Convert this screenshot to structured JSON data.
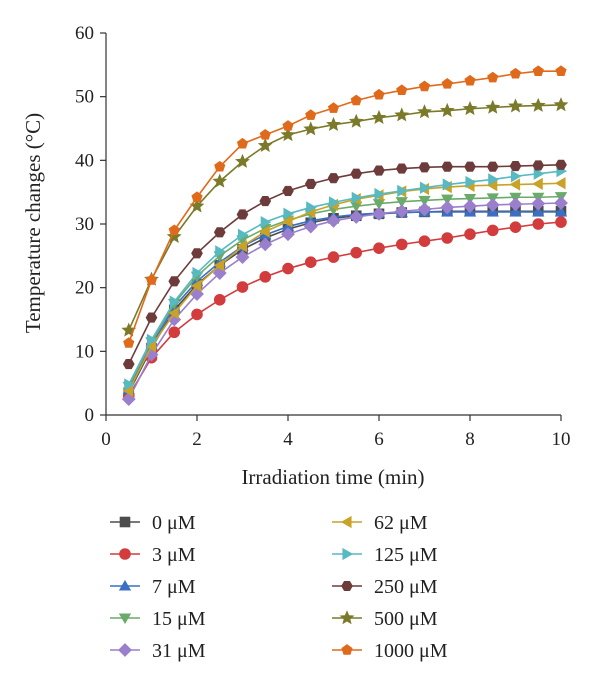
{
  "chart_data": {
    "type": "line",
    "title": "",
    "xlabel": "Irradiation time (min)",
    "ylabel": "Temperature changes (°C)",
    "xlim": [
      0,
      10
    ],
    "ylim": [
      0,
      60
    ],
    "xticks": [
      0,
      2,
      4,
      6,
      8,
      10
    ],
    "yticks": [
      0,
      10,
      20,
      30,
      40,
      50,
      60
    ],
    "grid": false,
    "legend_position": "bottom",
    "x": [
      0.5,
      1,
      1.5,
      2,
      2.5,
      3,
      3.5,
      4,
      4.5,
      5,
      5.5,
      6,
      6.5,
      7,
      7.5,
      8,
      8.5,
      9,
      9.5,
      10
    ],
    "series": [
      {
        "name": "0 μM",
        "color": "#4d4d4d",
        "marker": "square",
        "values": [
          3.5,
          10.5,
          16.5,
          20.5,
          23.5,
          26.0,
          27.8,
          29.2,
          30.2,
          30.9,
          31.3,
          31.6,
          31.8,
          31.9,
          32.0,
          32.0,
          32.0,
          32.0,
          32.0,
          32.0
        ]
      },
      {
        "name": "3 μM",
        "color": "#d23c3c",
        "marker": "circle",
        "values": [
          3.0,
          9.0,
          13.0,
          15.8,
          18.1,
          20.1,
          21.7,
          23.0,
          24.0,
          24.8,
          25.5,
          26.2,
          26.8,
          27.3,
          27.8,
          28.4,
          29.0,
          29.5,
          30.0,
          30.3
        ]
      },
      {
        "name": "7 μM",
        "color": "#3a6fc4",
        "marker": "triangle-up",
        "values": [
          4.0,
          11.0,
          17.0,
          21.0,
          24.0,
          26.5,
          28.3,
          29.6,
          30.5,
          31.1,
          31.5,
          31.7,
          31.8,
          31.9,
          31.9,
          31.9,
          31.9,
          31.9,
          31.9,
          31.9
        ]
      },
      {
        "name": "15 μM",
        "color": "#6aaa6a",
        "marker": "triangle-down",
        "values": [
          4.5,
          11.5,
          17.5,
          21.8,
          25.0,
          27.5,
          29.3,
          30.6,
          31.6,
          32.3,
          32.8,
          33.2,
          33.5,
          33.7,
          33.9,
          34.0,
          34.1,
          34.2,
          34.2,
          34.3
        ]
      },
      {
        "name": "31 μM",
        "color": "#9a7fcc",
        "marker": "diamond",
        "values": [
          2.5,
          9.5,
          15.0,
          19.0,
          22.3,
          24.8,
          26.8,
          28.4,
          29.6,
          30.5,
          31.1,
          31.6,
          32.0,
          32.3,
          32.6,
          32.8,
          33.0,
          33.1,
          33.2,
          33.3
        ]
      },
      {
        "name": "62 μM",
        "color": "#c9a227",
        "marker": "triangle-left",
        "values": [
          3.8,
          10.8,
          16.0,
          20.3,
          23.5,
          26.5,
          28.8,
          30.4,
          31.9,
          33.0,
          33.9,
          34.5,
          35.1,
          35.5,
          35.8,
          36.0,
          36.1,
          36.2,
          36.3,
          36.4
        ]
      },
      {
        "name": "125 μM",
        "color": "#57b9c2",
        "marker": "triangle-right",
        "values": [
          4.8,
          11.8,
          17.8,
          22.3,
          25.7,
          28.3,
          30.3,
          31.6,
          32.6,
          33.4,
          34.1,
          34.7,
          35.2,
          35.7,
          36.2,
          36.6,
          37.0,
          37.5,
          37.9,
          38.3
        ]
      },
      {
        "name": "250 μM",
        "color": "#6e3b3b",
        "marker": "hexagon",
        "values": [
          8.0,
          15.3,
          21.0,
          25.4,
          28.7,
          31.5,
          33.6,
          35.2,
          36.3,
          37.2,
          37.9,
          38.4,
          38.7,
          38.9,
          39.0,
          39.0,
          39.0,
          39.1,
          39.2,
          39.3
        ]
      },
      {
        "name": "500 μM",
        "color": "#7a7a2a",
        "marker": "star",
        "values": [
          13.3,
          21.3,
          28.0,
          32.8,
          36.7,
          39.8,
          42.3,
          44.0,
          44.9,
          45.6,
          46.1,
          46.7,
          47.1,
          47.6,
          47.8,
          48.1,
          48.3,
          48.5,
          48.6,
          48.7
        ]
      },
      {
        "name": "1000 μM",
        "color": "#e06a1b",
        "marker": "pentagon",
        "values": [
          11.3,
          21.2,
          29.0,
          34.2,
          39.0,
          42.6,
          44.0,
          45.4,
          47.1,
          48.2,
          49.4,
          50.3,
          51.0,
          51.6,
          52.0,
          52.5,
          53.0,
          53.6,
          54.0,
          54.0
        ]
      }
    ]
  }
}
